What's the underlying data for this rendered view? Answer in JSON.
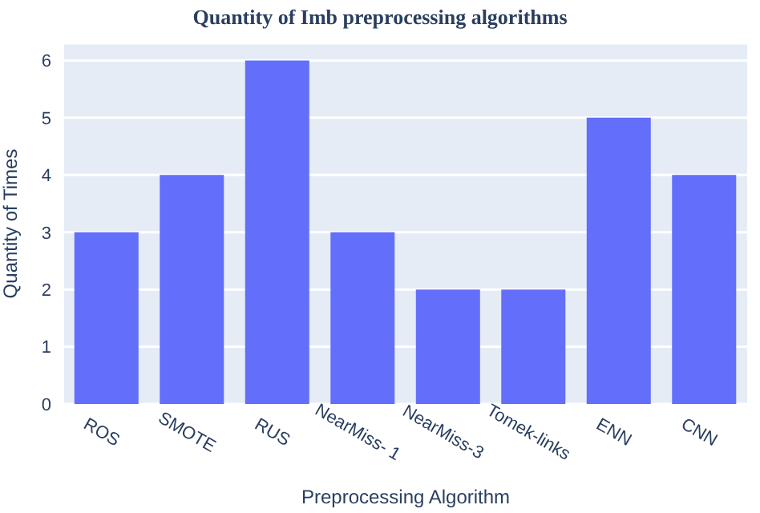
{
  "chart_data": {
    "type": "bar",
    "title": "Quantity of Imb preprocessing algorithms",
    "xlabel": "Preprocessing Algorithm",
    "ylabel": "Quantity of Times",
    "categories": [
      "ROS",
      "SMOTE",
      "RUS",
      "NearMiss- 1",
      "NearMiss-3",
      "Tomek-links",
      "ENN",
      "CNN"
    ],
    "values": [
      3,
      4,
      6,
      3,
      2,
      2,
      5,
      4
    ],
    "color": "#636efa",
    "ylim": [
      0,
      6.3
    ],
    "yticks": [
      0,
      1,
      2,
      3,
      4,
      5,
      6
    ],
    "grid": "y",
    "legend": false
  }
}
